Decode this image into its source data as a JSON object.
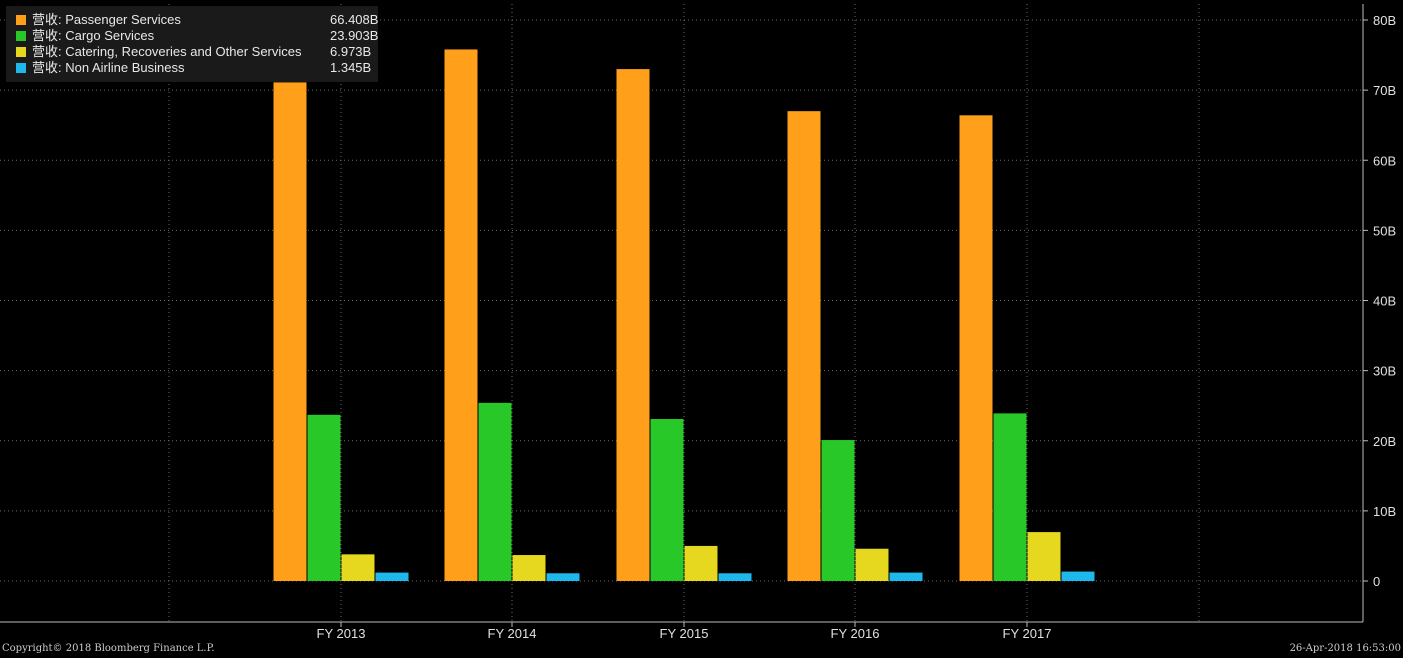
{
  "chart_data": {
    "type": "bar",
    "categories": [
      "FY 2013",
      "FY 2014",
      "FY 2015",
      "FY 2016",
      "FY 2017"
    ],
    "series": [
      {
        "name": "营收: Passenger Services",
        "color": "#ff9f1a",
        "values": [
          71.1,
          75.8,
          73.0,
          67.0,
          66.408
        ]
      },
      {
        "name": "营收: Cargo Services",
        "color": "#28c828",
        "values": [
          23.7,
          25.4,
          23.1,
          20.1,
          23.903
        ]
      },
      {
        "name": "营收: Catering, Recoveries and Other Services",
        "color": "#e6d81e",
        "values": [
          3.8,
          3.7,
          5.0,
          4.6,
          6.973
        ]
      },
      {
        "name": "营收: Non Airline Business",
        "color": "#1fb8ec",
        "values": [
          1.2,
          1.1,
          1.1,
          1.2,
          1.345
        ]
      }
    ],
    "ylim": [
      0,
      80
    ],
    "yticks": [
      "0",
      "10B",
      "20B",
      "30B",
      "40B",
      "50B",
      "60B",
      "70B",
      "80B"
    ],
    "grid": true,
    "legend_position": "top-left"
  },
  "legend": [
    {
      "label": "营收: Passenger Services",
      "value": "66.408B",
      "color": "#ff9f1a"
    },
    {
      "label": "营收: Cargo Services",
      "value": "23.903B",
      "color": "#28c828"
    },
    {
      "label": "营收: Catering, Recoveries and Other Services",
      "value": "6.973B",
      "color": "#e6d81e"
    },
    {
      "label": "营收: Non Airline Business",
      "value": "1.345B",
      "color": "#1fb8ec"
    }
  ],
  "footer": {
    "copyright": "Copyright© 2018 Bloomberg Finance L.P.",
    "timestamp": "26-Apr-2018 16:53:00"
  }
}
